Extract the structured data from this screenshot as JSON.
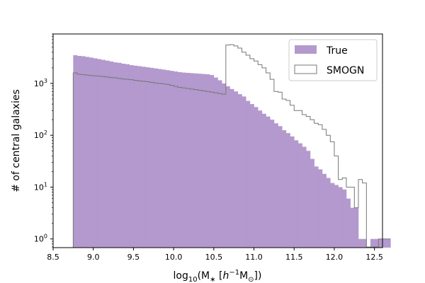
{
  "chart_data": {
    "type": "histogram",
    "xlabel": {
      "prefix": "log",
      "sub": "10",
      "body": "(M",
      "star": "∗",
      "space": " [",
      "h": "h",
      "exp": "−1",
      "m": "M",
      "sun": "⊙",
      "close": "])"
    },
    "ylabel": "# of central galaxies",
    "xlim": [
      8.5,
      12.6
    ],
    "ylim": [
      0.68,
      9000
    ],
    "yscale": "log",
    "grid": false,
    "legend_position": "upper right",
    "x_ticks": [
      8.5,
      9.0,
      9.5,
      10.0,
      10.5,
      11.0,
      11.5,
      12.0,
      12.5
    ],
    "x_tick_labels": [
      "8.5",
      "9.0",
      "9.5",
      "10.0",
      "10.5",
      "11.0",
      "11.5",
      "12.0",
      "12.5"
    ],
    "y_ticks": [
      {
        "label": "10",
        "exp": "0",
        "value": 1
      },
      {
        "label": "10",
        "exp": "1",
        "value": 10
      },
      {
        "label": "10",
        "exp": "2",
        "value": 100
      },
      {
        "label": "10",
        "exp": "3",
        "value": 1000
      }
    ],
    "bin_edges_start": 8.75,
    "bin_width": 0.05,
    "series": [
      {
        "name": "True",
        "kind": "filled",
        "color": "#b399cd",
        "values": [
          3500,
          3400,
          3350,
          3250,
          3150,
          3050,
          2950,
          2850,
          2750,
          2650,
          2550,
          2500,
          2400,
          2350,
          2250,
          2200,
          2150,
          2100,
          2050,
          2000,
          1950,
          1900,
          1850,
          1800,
          1750,
          1700,
          1650,
          1620,
          1600,
          1580,
          1560,
          1540,
          1520,
          1500,
          1450,
          1300,
          1150,
          1000,
          880,
          780,
          700,
          620,
          560,
          460,
          400,
          350,
          300,
          260,
          230,
          200,
          170,
          150,
          125,
          110,
          95,
          80,
          70,
          60,
          50,
          35,
          25,
          22,
          18,
          15,
          12,
          11,
          10,
          9,
          6,
          4,
          4,
          1,
          1,
          0.7,
          1,
          1,
          1,
          1,
          1
        ]
      },
      {
        "name": "SMOGN",
        "kind": "step",
        "color": "#777777",
        "values": [
          1600,
          1500,
          1480,
          1450,
          1420,
          1400,
          1380,
          1360,
          1330,
          1300,
          1280,
          1250,
          1220,
          1200,
          1180,
          1150,
          1120,
          1100,
          1080,
          1050,
          1020,
          1000,
          980,
          960,
          920,
          880,
          840,
          820,
          800,
          780,
          760,
          740,
          720,
          700,
          680,
          660,
          640,
          620,
          5500,
          5600,
          5300,
          4800,
          4000,
          3500,
          3000,
          2700,
          2300,
          2000,
          1600,
          1200,
          700,
          680,
          500,
          470,
          380,
          300,
          300,
          250,
          230,
          200,
          170,
          160,
          130,
          100,
          75,
          40,
          14,
          15,
          10,
          10,
          4,
          14,
          12,
          0.7,
          0.7,
          0.7,
          1,
          1,
          1
        ]
      }
    ]
  }
}
